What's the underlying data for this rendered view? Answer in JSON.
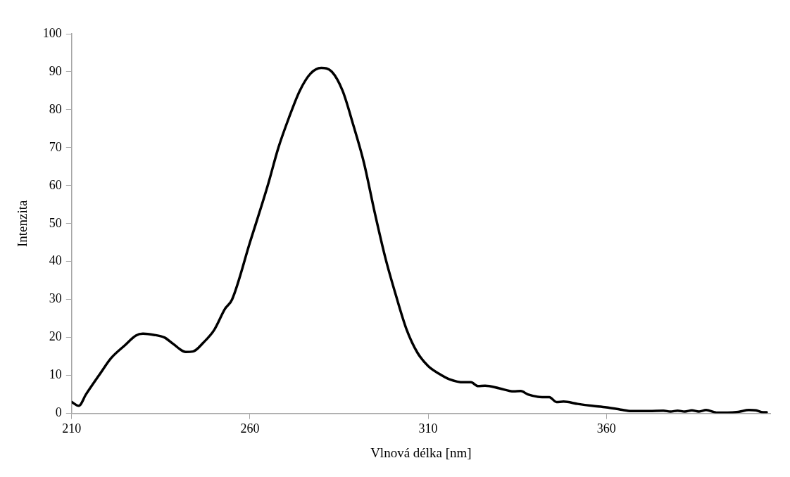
{
  "chart_data": {
    "type": "line",
    "xlabel": "Vlnová délka [nm]",
    "ylabel": "Intenzita",
    "xlim": [
      210,
      406
    ],
    "xticks": [
      210,
      260,
      310,
      360
    ],
    "ylim": [
      0,
      100
    ],
    "yticks": [
      0,
      10,
      20,
      30,
      40,
      50,
      60,
      70,
      80,
      90,
      100
    ],
    "grid": false,
    "legend": false,
    "marker": "none",
    "line_style": "solid",
    "series": [
      {
        "color": "#000000",
        "x": [
          210,
          212,
          214,
          218,
          221,
          225,
          228,
          230,
          233,
          236,
          238.5,
          242,
          244,
          247,
          250,
          253,
          255,
          260,
          265,
          268,
          271,
          274,
          277,
          280,
          283,
          286,
          289,
          292,
          295,
          298,
          301,
          304,
          307,
          310,
          313,
          316,
          320,
          322,
          324,
          326,
          330,
          334,
          336,
          338,
          342,
          344,
          346,
          348,
          352,
          356,
          360,
          364,
          367,
          372,
          376,
          378,
          380,
          382,
          384,
          386,
          388,
          391,
          394,
          397,
          400,
          402,
          404,
          405
        ],
        "values": [
          3.0,
          2.0,
          5,
          10.5,
          14.5,
          18,
          20.5,
          21,
          20.7,
          20,
          18.3,
          16.2,
          16.3,
          18.7,
          22,
          27.5,
          30,
          45,
          60,
          70,
          78,
          85,
          89.5,
          91,
          90,
          85,
          76,
          66,
          53,
          41,
          31,
          22,
          16,
          12.5,
          10.5,
          9,
          8.2,
          8.2,
          7.2,
          7.3,
          6.6,
          5.8,
          5.9,
          5,
          4.3,
          4.3,
          3.0,
          3.1,
          2.5,
          2.0,
          1.6,
          1.0,
          0.6,
          0.6,
          0.7,
          0.5,
          0.7,
          0.5,
          0.8,
          0.5,
          0.9,
          0.2,
          0.2,
          0.4,
          0.9,
          0.8,
          0.3,
          0.3
        ]
      }
    ]
  }
}
